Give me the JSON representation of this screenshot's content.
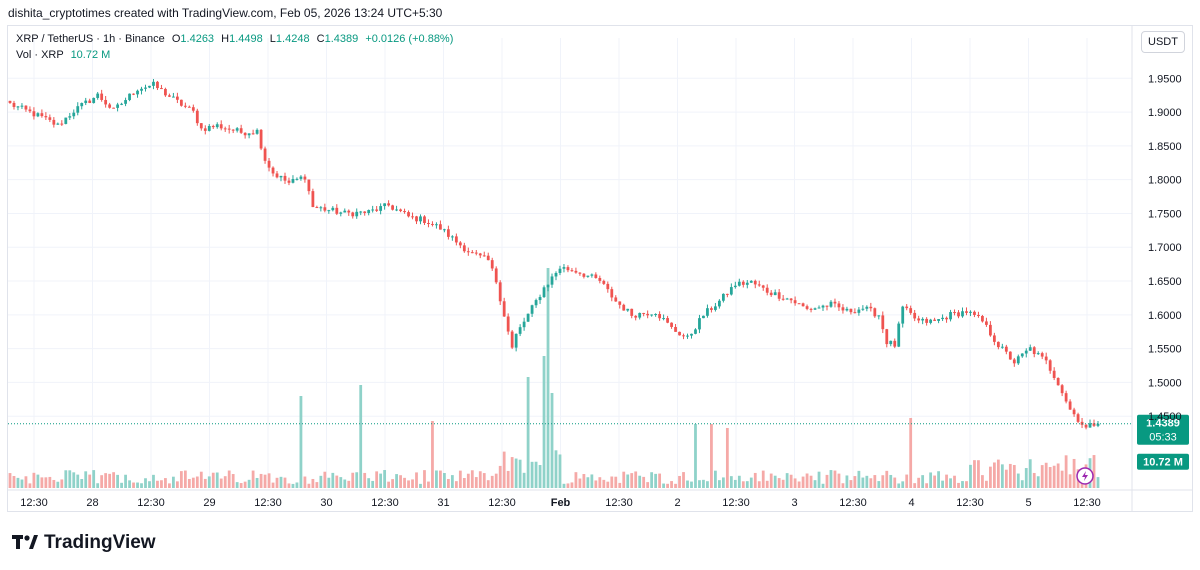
{
  "header": {
    "attribution": "dishita_cryptotimes created with TradingView.com, Feb 05, 2026 13:24 UTC+5:30"
  },
  "legend": {
    "symbol": "XRP / TetherUS · 1h · Binance",
    "open_label": "O",
    "open": "1.4263",
    "high_label": "H",
    "high": "1.4498",
    "low_label": "L",
    "low": "1.4248",
    "close_label": "C",
    "close": "1.4389",
    "change": "+0.0126 (+0.88%)",
    "vol_label": "Vol · XRP",
    "vol_value": "10.72 M"
  },
  "currency_button": "USDT",
  "price_tag": {
    "price": "1.4389",
    "countdown": "05:33"
  },
  "volume_tag": "10.72 M",
  "footer": {
    "brand": "TradingView"
  },
  "colors": {
    "up": "#26a69a",
    "down": "#ef5350",
    "up_vol": "#8fd2c9",
    "down_vol": "#f5a9a7",
    "price_line": "#089981"
  },
  "chart_data": {
    "type": "candlestick",
    "title": "",
    "xlabel": "",
    "ylabel": "",
    "ylim": [
      1.4,
      1.98
    ],
    "y_ticks": [
      "1.9500",
      "1.9000",
      "1.8500",
      "1.8000",
      "1.7500",
      "1.7000",
      "1.6500",
      "1.6000",
      "1.5500",
      "1.5000",
      "1.4500"
    ],
    "y_tick_values": [
      1.95,
      1.9,
      1.85,
      1.8,
      1.75,
      1.7,
      1.65,
      1.6,
      1.55,
      1.5,
      1.45
    ],
    "x_ticks": [
      "12:30",
      "28",
      "12:30",
      "29",
      "12:30",
      "30",
      "12:30",
      "31",
      "12:30",
      "Feb",
      "12:30",
      "2",
      "12:30",
      "3",
      "12:30",
      "4",
      "12:30",
      "5",
      "12:30"
    ],
    "x_tick_bold": [
      false,
      false,
      false,
      false,
      false,
      false,
      false,
      false,
      false,
      true,
      false,
      false,
      false,
      false,
      false,
      false,
      false,
      false,
      false
    ],
    "grid": true,
    "last_close": 1.4389,
    "anchors": [
      [
        0,
        1.912
      ],
      [
        8,
        1.892
      ],
      [
        12,
        1.88
      ],
      [
        16,
        1.902
      ],
      [
        22,
        1.925
      ],
      [
        26,
        1.902
      ],
      [
        32,
        1.935
      ],
      [
        36,
        1.94
      ],
      [
        42,
        1.915
      ],
      [
        46,
        1.9
      ],
      [
        48,
        1.875
      ],
      [
        52,
        1.88
      ],
      [
        58,
        1.87
      ],
      [
        62,
        1.872
      ],
      [
        64,
        1.83
      ],
      [
        66,
        1.81
      ],
      [
        70,
        1.795
      ],
      [
        74,
        1.805
      ],
      [
        76,
        1.76
      ],
      [
        84,
        1.75
      ],
      [
        90,
        1.752
      ],
      [
        95,
        1.762
      ],
      [
        100,
        1.745
      ],
      [
        104,
        1.74
      ],
      [
        108,
        1.728
      ],
      [
        112,
        1.708
      ],
      [
        116,
        1.69
      ],
      [
        120,
        1.68
      ],
      [
        122,
        1.65
      ],
      [
        124,
        1.6
      ],
      [
        126,
        1.55
      ],
      [
        127,
        1.57
      ],
      [
        130,
        1.6
      ],
      [
        134,
        1.64
      ],
      [
        138,
        1.67
      ],
      [
        142,
        1.665
      ],
      [
        148,
        1.65
      ],
      [
        152,
        1.62
      ],
      [
        156,
        1.6
      ],
      [
        162,
        1.605
      ],
      [
        166,
        1.58
      ],
      [
        170,
        1.565
      ],
      [
        174,
        1.6
      ],
      [
        178,
        1.62
      ],
      [
        182,
        1.645
      ],
      [
        186,
        1.648
      ],
      [
        190,
        1.635
      ],
      [
        196,
        1.622
      ],
      [
        200,
        1.608
      ],
      [
        206,
        1.615
      ],
      [
        210,
        1.605
      ],
      [
        214,
        1.61
      ],
      [
        218,
        1.6
      ],
      [
        220,
        1.56
      ],
      [
        222,
        1.555
      ],
      [
        224,
        1.61
      ],
      [
        228,
        1.59
      ],
      [
        232,
        1.59
      ],
      [
        236,
        1.6
      ],
      [
        240,
        1.605
      ],
      [
        244,
        1.59
      ],
      [
        248,
        1.555
      ],
      [
        252,
        1.53
      ],
      [
        256,
        1.55
      ],
      [
        260,
        1.53
      ],
      [
        263,
        1.5
      ],
      [
        266,
        1.46
      ],
      [
        270,
        1.432
      ],
      [
        272,
        1.4389
      ]
    ],
    "volume_spikes": [
      [
        73,
        92
      ],
      [
        88,
        103
      ],
      [
        106,
        67
      ],
      [
        130,
        111
      ],
      [
        134,
        132
      ],
      [
        135,
        220
      ],
      [
        136,
        95
      ],
      [
        172,
        64
      ],
      [
        176,
        64
      ],
      [
        180,
        60
      ],
      [
        226,
        70
      ]
    ]
  }
}
